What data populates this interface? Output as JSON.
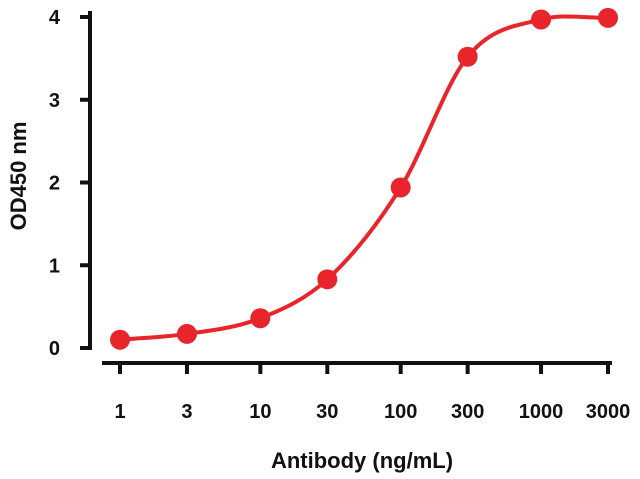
{
  "chart_data": {
    "type": "line",
    "title": "",
    "xlabel": "Antibody (ng/mL)",
    "ylabel": "OD450 nm",
    "x_scale": "log",
    "categories": [
      "1",
      "3",
      "10",
      "30",
      "100",
      "300",
      "1000",
      "3000"
    ],
    "series": [
      {
        "x": [
          1,
          3,
          10,
          30,
          100,
          300,
          1000,
          3000
        ],
        "y": [
          0.1,
          0.17,
          0.36,
          0.83,
          1.94,
          3.52,
          3.97,
          3.99
        ],
        "color": "#e8252b"
      }
    ],
    "ylim": [
      0,
      4
    ],
    "yticks": [
      "0",
      "1",
      "2",
      "3",
      "4"
    ],
    "grid": false,
    "legend": "none"
  }
}
